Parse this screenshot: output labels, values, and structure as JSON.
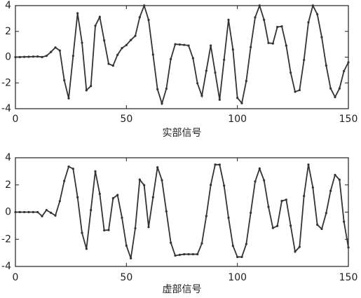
{
  "chart_data": [
    {
      "type": "line",
      "xlabel": "实部信号",
      "color": "#333333",
      "x": [
        0,
        2,
        4,
        6,
        8,
        10,
        12,
        14,
        16,
        18,
        20,
        22,
        24,
        26,
        28,
        30,
        32,
        34,
        36,
        38,
        40,
        42,
        44,
        46,
        48,
        50,
        52,
        54,
        56,
        58,
        60,
        62,
        64,
        66,
        68,
        70,
        72,
        74,
        76,
        78,
        80,
        82,
        84,
        86,
        88,
        90,
        92,
        94,
        96,
        98,
        100,
        102,
        104,
        106,
        108,
        110,
        112,
        114,
        116,
        118,
        120,
        122,
        124,
        126,
        128,
        130,
        132,
        134,
        136,
        138,
        140,
        142,
        144,
        146,
        148,
        150
      ],
      "values": [
        0,
        0.01,
        0.02,
        0.03,
        0.04,
        0.05,
        0.01,
        0.1,
        0.4,
        0.75,
        0.51,
        -1.79,
        -3.2,
        0.1,
        3.4,
        1.12,
        -2.57,
        -2.24,
        2.44,
        3.12,
        1.3,
        -0.52,
        -0.66,
        0.18,
        0.7,
        0.94,
        1.33,
        1.65,
        3.1,
        4.0,
        2.89,
        0.2,
        -2.49,
        -3.6,
        -2.45,
        -0.15,
        1.0,
        0.98,
        0.95,
        0.9,
        -0.08,
        -2.03,
        -3.0,
        -1.05,
        0.9,
        -1.2,
        -3.3,
        -0.2,
        2.9,
        0.59,
        -3.16,
        -3.57,
        -1.85,
        0.78,
        3.09,
        4.0,
        2.9,
        1.1,
        1.06,
        2.34,
        2.39,
        0.9,
        -1.2,
        -2.69,
        -2.56,
        -0.22,
        2.7,
        4.0,
        3.33,
        1.55,
        -0.65,
        -2.43,
        -3.1,
        -2.43,
        -1.08,
        -0.4
      ],
      "xlim": [
        0,
        150
      ],
      "ylim": [
        -4,
        4
      ],
      "xticks": [
        0,
        50,
        100,
        150
      ],
      "yticks": [
        -4,
        -2,
        0,
        2,
        4
      ]
    },
    {
      "type": "line",
      "xlabel": "虚部信号",
      "color": "#333333",
      "x": [
        0,
        2,
        4,
        6,
        8,
        10,
        12,
        14,
        16,
        18,
        20,
        22,
        24,
        26,
        28,
        30,
        32,
        34,
        36,
        38,
        40,
        42,
        44,
        46,
        48,
        50,
        52,
        54,
        56,
        58,
        60,
        62,
        64,
        66,
        68,
        70,
        72,
        74,
        76,
        78,
        80,
        82,
        84,
        86,
        88,
        90,
        92,
        94,
        96,
        98,
        100,
        102,
        104,
        106,
        108,
        110,
        112,
        114,
        116,
        118,
        120,
        122,
        124,
        126,
        128,
        130,
        132,
        134,
        136,
        138,
        140,
        142,
        144,
        146,
        148,
        150
      ],
      "values": [
        0,
        0,
        0,
        0,
        0,
        0,
        -0.3,
        0.15,
        -0.05,
        -0.25,
        0.81,
        2.29,
        3.35,
        3.19,
        1.09,
        -1.53,
        -2.7,
        0.15,
        3.0,
        1.34,
        -1.34,
        -1.32,
        1.02,
        1.26,
        -0.41,
        -2.47,
        -3.4,
        -1.19,
        2.39,
        1.98,
        -1.1,
        1.1,
        3.3,
        2.35,
        0.05,
        -2.25,
        -3.2,
        -3.15,
        -3.1,
        -3.1,
        -3.1,
        -3.1,
        -2.3,
        -0.29,
        2.0,
        3.5,
        3.49,
        1.95,
        -0.41,
        -2.48,
        -3.3,
        -3.3,
        -2.35,
        -0.05,
        2.25,
        3.2,
        2.34,
        0.39,
        -1.17,
        -1.02,
        0.82,
        0.91,
        -1.0,
        -2.91,
        -2.56,
        1.19,
        3.5,
        1.81,
        -0.93,
        -1.24,
        -0.07,
        1.57,
        2.74,
        2.38,
        -0.7,
        -2.6
      ],
      "xlim": [
        0,
        150
      ],
      "ylim": [
        -4,
        4
      ],
      "xticks": [
        0,
        50,
        100,
        150
      ],
      "yticks": [
        -4,
        -2,
        0,
        2,
        4
      ]
    }
  ]
}
